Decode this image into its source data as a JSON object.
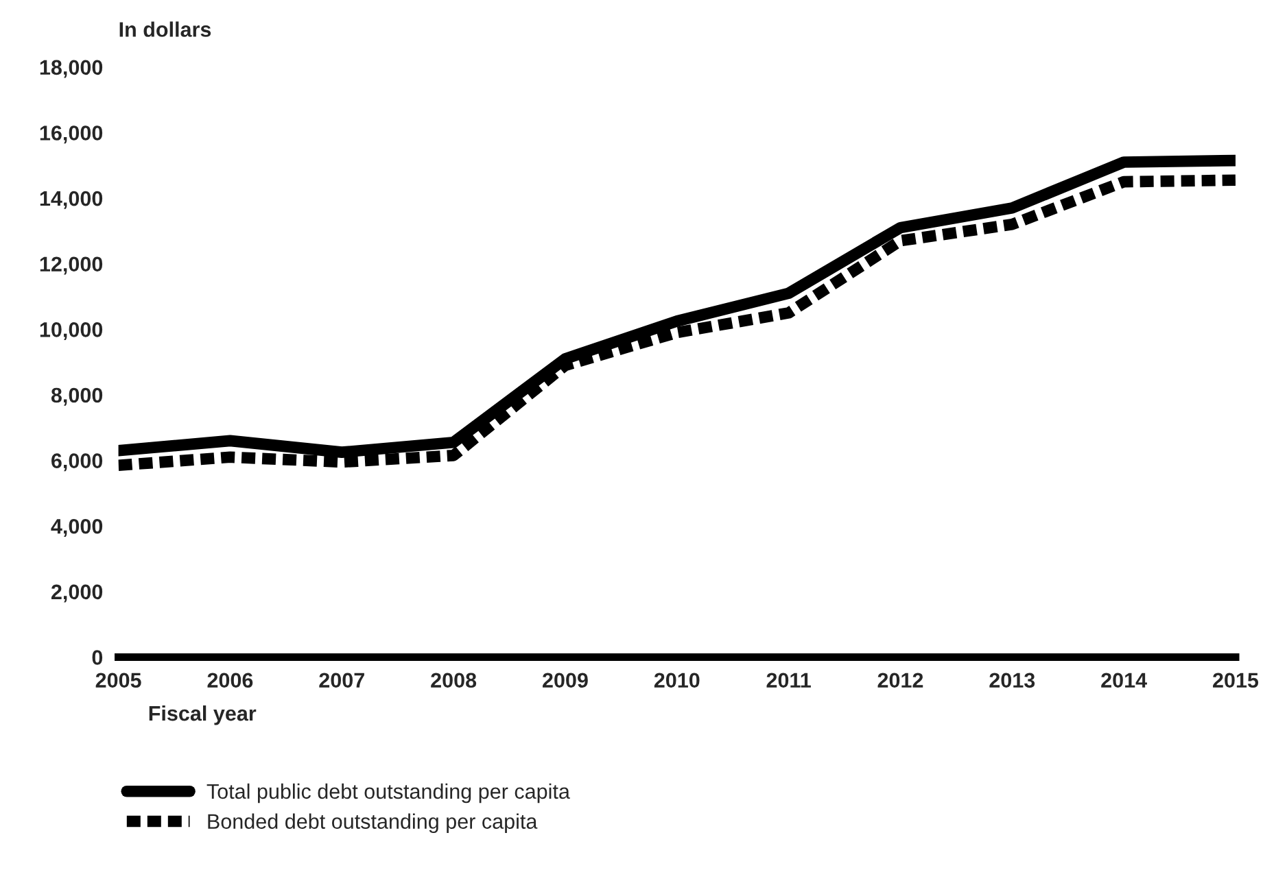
{
  "chart_data": {
    "type": "line",
    "ylabel": "In dollars",
    "xlabel": "Fiscal year",
    "x": [
      2005,
      2006,
      2007,
      2008,
      2009,
      2010,
      2011,
      2012,
      2013,
      2014,
      2015
    ],
    "xlim": [
      2005,
      2015
    ],
    "xticks": [
      2005,
      2006,
      2007,
      2008,
      2009,
      2010,
      2011,
      2012,
      2013,
      2014,
      2015
    ],
    "ylim": [
      0,
      18000
    ],
    "yticks": [
      {
        "value": 0,
        "label": "0"
      },
      {
        "value": 2000,
        "label": "2,000"
      },
      {
        "value": 4000,
        "label": "4,000"
      },
      {
        "value": 6000,
        "label": "6,000"
      },
      {
        "value": 8000,
        "label": "8,000"
      },
      {
        "value": 10000,
        "label": "10,000"
      },
      {
        "value": 12000,
        "label": "12,000"
      },
      {
        "value": 14000,
        "label": "14,000"
      },
      {
        "value": 16000,
        "label": "16,000"
      },
      {
        "value": 18000,
        "label": "18,000"
      }
    ],
    "grid": false,
    "legend": "bottom left",
    "series": [
      {
        "name": "Total public debt outstanding per capita",
        "color": "#000000",
        "line_style": "solid",
        "values": [
          6300,
          6600,
          6250,
          6550,
          9100,
          10250,
          11100,
          13100,
          13700,
          15100,
          15150
        ]
      },
      {
        "name": "Bonded debt outstanding per capita",
        "color": "#000000",
        "line_style": "dashed",
        "values": [
          5850,
          6100,
          5950,
          6150,
          8900,
          9900,
          10500,
          12700,
          13200,
          14500,
          14550
        ]
      }
    ]
  }
}
